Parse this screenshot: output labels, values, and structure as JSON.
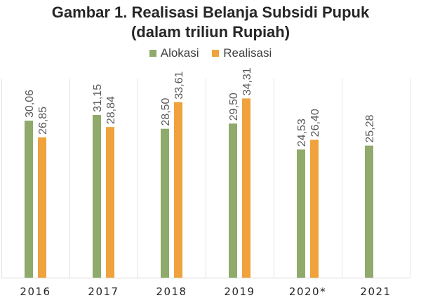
{
  "chart_data": {
    "type": "bar",
    "title_lines": [
      "Gambar 1. Realisasi Belanja Subsidi Pupuk",
      "(dalam triliun Rupiah)"
    ],
    "categories": [
      "2016",
      "2017",
      "2018",
      "2019",
      "2020*",
      "2021"
    ],
    "series": [
      {
        "name": "Alokasi",
        "color": "#8faa6a",
        "values": [
          30.06,
          31.15,
          28.5,
          29.5,
          24.53,
          25.28
        ],
        "labels": [
          "30,06",
          "31,15",
          "28,50",
          "29,50",
          "24,53",
          "25,28"
        ]
      },
      {
        "name": "Realisasi",
        "color": "#f0a23c",
        "values": [
          26.85,
          28.84,
          33.61,
          34.31,
          26.4,
          null
        ],
        "labels": [
          "26,85",
          "28,84",
          "33,61",
          "34,31",
          "26,40",
          ""
        ]
      }
    ],
    "ylim": [
      0,
      50
    ],
    "grid": "vertical separators between categories",
    "legend_position": "top-center"
  }
}
